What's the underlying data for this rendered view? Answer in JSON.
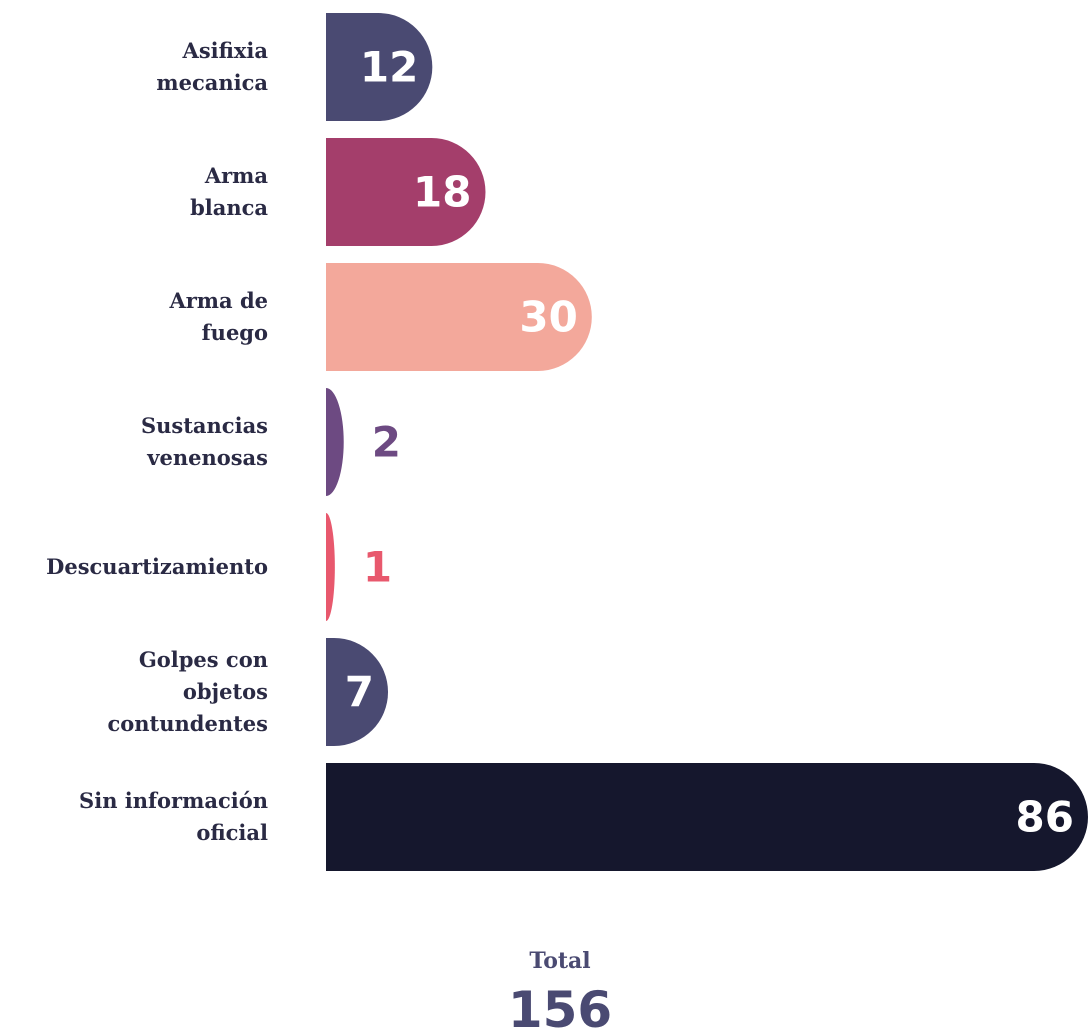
{
  "chart_data": {
    "type": "bar",
    "orientation": "horizontal",
    "categories": [
      "Asifixia\nmecanica",
      "Arma\nblanca",
      "Arma de\nfuego",
      "Sustancias\nvenenosas",
      "Descuartizamiento",
      "Golpes con\nobjetos\ncontundentes",
      "Sin información\noficial"
    ],
    "values": [
      12,
      18,
      30,
      2,
      1,
      7,
      86
    ],
    "colors": [
      "#4a4a72",
      "#a43e6b",
      "#f3a89b",
      "#6d4a82",
      "#e8586d",
      "#4a4a72",
      "#15172d"
    ],
    "total_label": "Total",
    "total": 156
  }
}
